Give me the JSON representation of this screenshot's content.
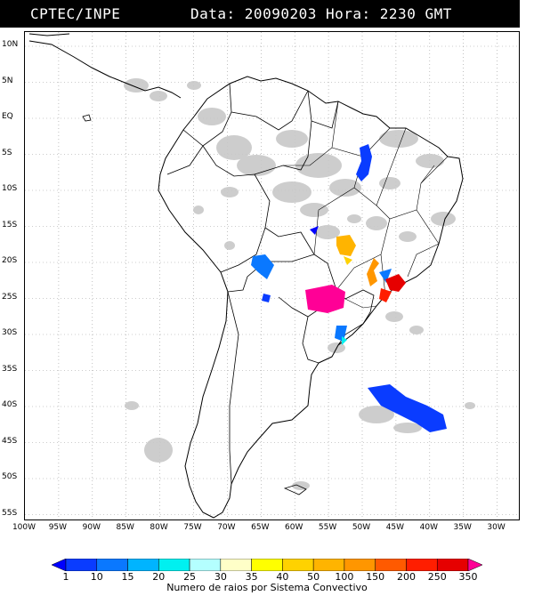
{
  "header": {
    "source": "CPTEC/INPE",
    "datetime": "Data: 20090203 Hora: 2230 GMT"
  },
  "lat_labels": [
    "10N",
    "5N",
    "EQ",
    "5S",
    "10S",
    "15S",
    "20S",
    "25S",
    "30S",
    "35S",
    "40S",
    "45S",
    "50S",
    "55S"
  ],
  "lon_labels": [
    "100W",
    "95W",
    "90W",
    "85W",
    "80W",
    "75W",
    "70W",
    "65W",
    "60W",
    "55W",
    "50W",
    "45W",
    "40W",
    "35W",
    "30W"
  ],
  "legend": {
    "ticks": [
      "1",
      "10",
      "15",
      "20",
      "25",
      "30",
      "35",
      "40",
      "50",
      "100",
      "150",
      "200",
      "250",
      "350"
    ],
    "colors": [
      "#0000ff",
      "#0a3cff",
      "#0a78ff",
      "#00b4ff",
      "#00f0f0",
      "#b4ffff",
      "#ffffc8",
      "#ffff00",
      "#ffd200",
      "#ffb400",
      "#ff9600",
      "#ff5a00",
      "#ff1e00",
      "#e60000",
      "#ff0096"
    ],
    "caption": "Numero de raios por Sistema Convectivo"
  },
  "colors": {
    "coast": "#000000",
    "grid": "#9a9a9a",
    "cloud": "#c8c8c8"
  }
}
